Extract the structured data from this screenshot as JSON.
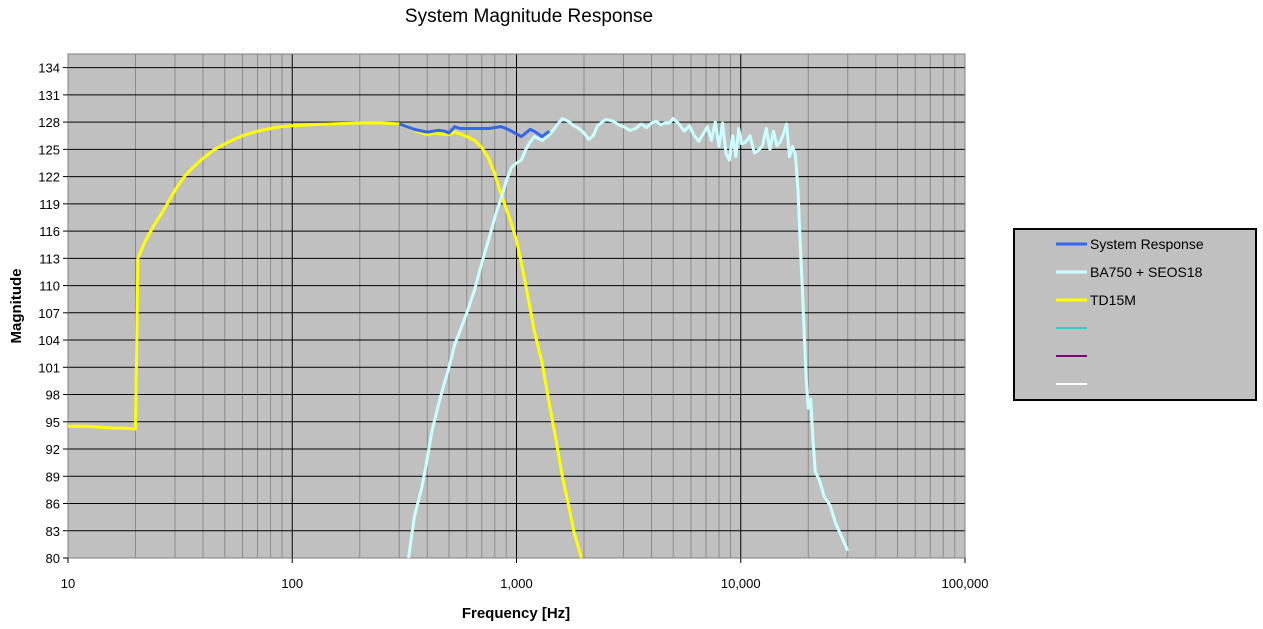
{
  "chart_data": {
    "type": "line",
    "title": "System Magnitude Response",
    "xlabel": "Frequency [Hz]",
    "ylabel": "Magnitude",
    "x_scale": "log",
    "xlim": [
      10,
      100000
    ],
    "ylim": [
      80,
      135.5
    ],
    "x_tick_values": [
      10,
      100,
      1000,
      10000,
      100000
    ],
    "x_tick_labels": [
      "10",
      "100",
      "1,000",
      "10,000",
      "100,000"
    ],
    "y_ticks": [
      80,
      83,
      86,
      89,
      92,
      95,
      98,
      101,
      104,
      107,
      110,
      113,
      116,
      119,
      122,
      125,
      128,
      131,
      134
    ],
    "grid": true,
    "plot_background": "#c0c0c0",
    "legend_position": "right",
    "series": [
      {
        "name": "System Response",
        "color": "#3366ee",
        "points": [
          [
            300,
            127.8
          ],
          [
            350,
            127.2
          ],
          [
            400,
            126.9
          ],
          [
            450,
            127.1
          ],
          [
            480,
            127.0
          ],
          [
            500,
            126.8
          ],
          [
            530,
            127.5
          ],
          [
            560,
            127.3
          ],
          [
            600,
            127.3
          ],
          [
            650,
            127.3
          ],
          [
            700,
            127.3
          ],
          [
            750,
            127.3
          ],
          [
            800,
            127.4
          ],
          [
            850,
            127.5
          ],
          [
            900,
            127.3
          ],
          [
            950,
            127.0
          ],
          [
            1000,
            126.7
          ],
          [
            1050,
            126.4
          ],
          [
            1100,
            126.8
          ],
          [
            1150,
            127.2
          ],
          [
            1200,
            127.0
          ],
          [
            1300,
            126.4
          ],
          [
            1400,
            127.0
          ]
        ]
      },
      {
        "name": "BA750 + SEOS18",
        "color": "#ccffff",
        "points": [
          [
            330,
            80
          ],
          [
            350,
            84.5
          ],
          [
            380,
            88
          ],
          [
            400,
            91
          ],
          [
            420,
            94
          ],
          [
            450,
            97
          ],
          [
            480,
            99.5
          ],
          [
            500,
            101
          ],
          [
            530,
            103.5
          ],
          [
            560,
            105
          ],
          [
            600,
            107
          ],
          [
            650,
            109.5
          ],
          [
            700,
            112.5
          ],
          [
            750,
            115
          ],
          [
            800,
            117.5
          ],
          [
            850,
            119.5
          ],
          [
            900,
            121.5
          ],
          [
            950,
            123
          ],
          [
            1000,
            123.5
          ],
          [
            1050,
            123.8
          ],
          [
            1100,
            125
          ],
          [
            1150,
            125.8
          ],
          [
            1200,
            126.4
          ],
          [
            1300,
            126
          ],
          [
            1400,
            126.6
          ],
          [
            1500,
            127.5
          ],
          [
            1600,
            128.4
          ],
          [
            1700,
            128.1
          ],
          [
            1800,
            127.6
          ],
          [
            1900,
            127.3
          ],
          [
            2000,
            126.8
          ],
          [
            2100,
            126.1
          ],
          [
            2200,
            126.5
          ],
          [
            2300,
            127.6
          ],
          [
            2500,
            128.3
          ],
          [
            2700,
            128.1
          ],
          [
            2900,
            127.6
          ],
          [
            3000,
            127.5
          ],
          [
            3200,
            127.1
          ],
          [
            3400,
            127.3
          ],
          [
            3600,
            127.8
          ],
          [
            3800,
            127.4
          ],
          [
            4000,
            127.9
          ],
          [
            4200,
            128.1
          ],
          [
            4400,
            127.7
          ],
          [
            4600,
            127.9
          ],
          [
            4800,
            127.9
          ],
          [
            5000,
            128.4
          ],
          [
            5300,
            127.8
          ],
          [
            5600,
            127.0
          ],
          [
            5900,
            127.6
          ],
          [
            6200,
            126.5
          ],
          [
            6500,
            125.9
          ],
          [
            6800,
            126.7
          ],
          [
            7100,
            127.5
          ],
          [
            7400,
            126.0
          ],
          [
            7700,
            128.0
          ],
          [
            8000,
            125.3
          ],
          [
            8300,
            127.9
          ],
          [
            8600,
            124.5
          ],
          [
            8900,
            123.8
          ],
          [
            9200,
            126.5
          ],
          [
            9500,
            124.2
          ],
          [
            9800,
            127.3
          ],
          [
            10100,
            125.6
          ],
          [
            10500,
            125.8
          ],
          [
            11000,
            126.5
          ],
          [
            11500,
            124.6
          ],
          [
            12000,
            124.9
          ],
          [
            12500,
            125.4
          ],
          [
            13000,
            127.3
          ],
          [
            13500,
            125.0
          ],
          [
            14000,
            127.0
          ],
          [
            14500,
            125.4
          ],
          [
            15000,
            125.8
          ],
          [
            15500,
            126.7
          ],
          [
            16000,
            127.8
          ],
          [
            16500,
            124.2
          ],
          [
            17000,
            125.3
          ],
          [
            17500,
            124.5
          ],
          [
            18000,
            120.5
          ],
          [
            18400,
            115
          ],
          [
            18800,
            110
          ],
          [
            19200,
            104.5
          ],
          [
            19600,
            99.5
          ],
          [
            20000,
            96.5
          ],
          [
            20500,
            97.5
          ],
          [
            21000,
            93
          ],
          [
            21500,
            89.5
          ],
          [
            22500,
            88.5
          ],
          [
            23500,
            86.8
          ],
          [
            25000,
            85.8
          ],
          [
            26500,
            83.8
          ],
          [
            28000,
            82.5
          ],
          [
            30000,
            80.8
          ]
        ]
      },
      {
        "name": "TD15M",
        "color": "#ffff00",
        "points": [
          [
            10,
            94.5
          ],
          [
            12,
            94.5
          ],
          [
            14,
            94.4
          ],
          [
            16,
            94.3
          ],
          [
            18,
            94.3
          ],
          [
            20,
            94.2
          ],
          [
            20.5,
            113
          ],
          [
            22,
            114.8
          ],
          [
            24,
            116.5
          ],
          [
            27,
            118.5
          ],
          [
            30,
            120.5
          ],
          [
            33,
            122
          ],
          [
            36,
            123
          ],
          [
            40,
            124
          ],
          [
            45,
            125
          ],
          [
            50,
            125.6
          ],
          [
            55,
            126.1
          ],
          [
            60,
            126.5
          ],
          [
            70,
            127.0
          ],
          [
            80,
            127.3
          ],
          [
            90,
            127.5
          ],
          [
            100,
            127.6
          ],
          [
            120,
            127.7
          ],
          [
            150,
            127.8
          ],
          [
            200,
            127.9
          ],
          [
            250,
            127.9
          ],
          [
            300,
            127.8
          ],
          [
            330,
            127.4
          ],
          [
            360,
            127.0
          ],
          [
            400,
            126.6
          ],
          [
            430,
            126.8
          ],
          [
            460,
            126.7
          ],
          [
            500,
            126.6
          ],
          [
            530,
            126.9
          ],
          [
            560,
            126.7
          ],
          [
            600,
            126.4
          ],
          [
            650,
            126.0
          ],
          [
            700,
            125.2
          ],
          [
            750,
            124.0
          ],
          [
            800,
            122.3
          ],
          [
            850,
            120.2
          ],
          [
            900,
            118.5
          ],
          [
            950,
            116.8
          ],
          [
            1000,
            115
          ],
          [
            1050,
            112.5
          ],
          [
            1100,
            110
          ],
          [
            1150,
            107.5
          ],
          [
            1200,
            105
          ],
          [
            1300,
            101.5
          ],
          [
            1400,
            97
          ],
          [
            1500,
            93
          ],
          [
            1600,
            89
          ],
          [
            1700,
            86
          ],
          [
            1800,
            83
          ],
          [
            1950,
            80
          ]
        ]
      }
    ],
    "legend_entries": [
      {
        "name": "System Response",
        "color": "#3366ee"
      },
      {
        "name": "BA750 + SEOS18",
        "color": "#ccffff"
      },
      {
        "name": "TD15M",
        "color": "#ffff00"
      },
      {
        "name": "",
        "color": "#33cccc"
      },
      {
        "name": "",
        "color": "#800080"
      },
      {
        "name": "",
        "color": "#ffffff"
      }
    ]
  }
}
